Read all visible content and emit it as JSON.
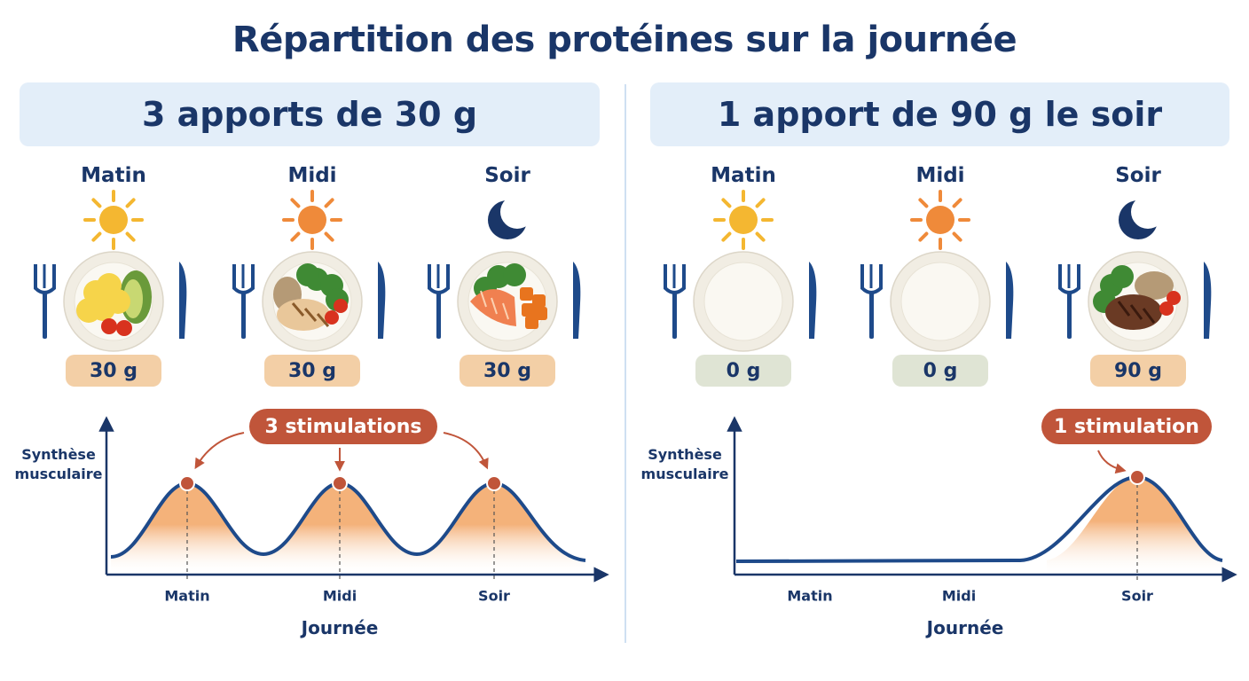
{
  "title": "Répartition des protéines sur la journée",
  "panels": [
    {
      "heading": "3 apports de 30 g",
      "meals": [
        {
          "time": "Matin",
          "amount": "30 g"
        },
        {
          "time": "Midi",
          "amount": "30 g"
        },
        {
          "time": "Soir",
          "amount": "30 g"
        }
      ],
      "callout": "3 stimulations",
      "y_label": "Synthèse musculaire",
      "x_ticks": [
        "Matin",
        "Midi",
        "Soir"
      ],
      "x_label": "Journée"
    },
    {
      "heading": "1 apport de 90 g le soir",
      "meals": [
        {
          "time": "Matin",
          "amount": "0 g"
        },
        {
          "time": "Midi",
          "amount": "0 g"
        },
        {
          "time": "Soir",
          "amount": "90 g"
        }
      ],
      "callout": "1 stimulation",
      "y_label": "Synthèse musculaire",
      "x_ticks": [
        "Matin",
        "Midi",
        "Soir"
      ],
      "x_label": "Journée"
    }
  ]
}
